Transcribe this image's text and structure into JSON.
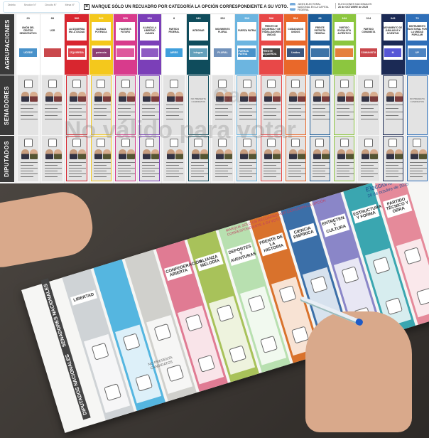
{
  "ballot": {
    "fields": [
      "Distrito",
      "Sección N°",
      "Circuito N°",
      "Mesa N°"
    ],
    "instruction": "MARQUE SÓLO UN RECUADRO POR CATEGORÍA LA OPCIÓN CORRESPONDIENTE A SU VOTO.",
    "junta": "JUNTA ELECTORAL NACIONAL EN LA CAPITAL FEDERAL",
    "election_title": "ELECCIONES NACIONALES",
    "election_date": "26 de OCTUBRE de 2025",
    "sections": {
      "agrupaciones": "AGRUPACIONES",
      "senadores": "SENADORES",
      "diputados": "DIPUTADOS"
    },
    "no_candidates": "NO PRESENTA CANDIDATOS",
    "watermark": "No válido para votar",
    "watermark2": "Ca",
    "parties": [
      {
        "number": "20",
        "name": "UNIÓN DEL CENTRO DEMOCRÁTICO",
        "logo": "UCEDE",
        "color": "#ffffff",
        "logo_color": "#2a7fc1",
        "senate": true
      },
      {
        "number": "89",
        "name": "UCR",
        "logo": "",
        "color": "#ffffff",
        "logo_color": "#c0282d",
        "senate": true
      },
      {
        "number": "500",
        "name": "LA IZQUIERDA EN LA CIUDAD",
        "logo": "IZQUIERDA",
        "color": "#d8262f",
        "logo_color": "#d8262f",
        "senate": true
      },
      {
        "number": "502",
        "name": "ALIANZA POTENCIA",
        "logo": "potencia",
        "color": "#f4c81c",
        "logo_color": "#7a1f5c",
        "senate": true
      },
      {
        "number": "505",
        "name": "HACEMOS FUTURO",
        "logo": "",
        "color": "#d83b8c",
        "logo_color": "#d83b8c",
        "senate": true
      },
      {
        "number": "501",
        "name": "ALIANZA LA LIBERTAD AVANZA",
        "logo": "",
        "color": "#7b3fb8",
        "logo_color": "#7b3fb8",
        "senate": true
      },
      {
        "number": "8",
        "name": "PARTIDO FEDERAL",
        "logo": "AIRES",
        "color": "#ffffff",
        "logo_color": "#1f8fd6",
        "senate": true
      },
      {
        "number": "340",
        "name": "INTEGRAR",
        "logo": "integrar",
        "color": "#0f4c5c",
        "logo_color": "#4a90b0",
        "senate": false
      },
      {
        "number": "352",
        "name": "MOVIMIENTO PLURAL",
        "logo": "PLURAL",
        "color": "#ffffff",
        "logo_color": "#5a7fb0",
        "senate": true
      },
      {
        "number": "503",
        "name": "FUERZA PATRIA",
        "logo": "FUERZA PATRIA",
        "color": "#6cb5e0",
        "logo_color": "#2a7fc1",
        "senate": true
      },
      {
        "number": "506",
        "name": "FRENTE DE IZQUIERDA Y DE TRABAJADORES UNIDAD",
        "logo": "FRENTE IZQUIERDA",
        "color": "#e84848",
        "logo_color": "#222222",
        "senate": true
      },
      {
        "number": "504",
        "name": "CIUDADANOS UNIDOS",
        "logo": "Unidos",
        "color": "#e9682a",
        "logo_color": "#1b3a6b",
        "senate": true
      },
      {
        "number": "95",
        "name": "FRENTE PATRIOTA FEDERAL",
        "logo": "",
        "color": "#1c5c98",
        "logo_color": "#1c5c98",
        "senate": true
      },
      {
        "number": "184",
        "name": "PARTIDO SOCIALISTA AUTÉNTICO",
        "logo": "",
        "color": "#8cc63f",
        "logo_color": "#e06a1a",
        "senate": true
      },
      {
        "number": "314",
        "name": "PARTIDO COMUNISTA",
        "logo": "COMUNISTA",
        "color": "#ffffff",
        "logo_color": "#c0282d",
        "senate": true
      },
      {
        "number": "343",
        "name": "MOVIMIENTO DE JUBILADOS Y JUVENTUD",
        "logo": "M",
        "color": "#1b2a55",
        "logo_color": "#3a3ad0",
        "senate": true
      },
      {
        "number": "73",
        "name": "INSTRUMENTO ELECTORAL POR LA UNIDAD POPULAR",
        "logo": "UP",
        "color": "#2f6fb8",
        "logo_color": "#2f6fb8",
        "senate": false
      }
    ]
  },
  "photo": {
    "title": "Elecciones NACIONALES 2025",
    "date": "26 de octubre de 2025",
    "instruction": "MARQUE SÓLO UN RECUADRO POR CATEGORÍA LA OPCIÓN CORRESPONDIENTE A SU VOTO",
    "diputados": "DIPUTADOS NACIONALES",
    "senadores": "SENADORES NACIONALES",
    "no_candidates": "NO PRESENTA CANDIDATOS",
    "parties": [
      {
        "name": "LIBERTAD",
        "color": "#cfd3d6"
      },
      {
        "name": "",
        "color": "#55b6e0"
      },
      {
        "name": "",
        "color": "#d0d0cc"
      },
      {
        "name": "CONFEDERACIÓN ABIERTA",
        "color": "#e07b93"
      },
      {
        "name": "ALIANZA MELODÍA",
        "color": "#a8c25a"
      },
      {
        "name": "DEPORTES Y AVENTURAS",
        "color": "#b8e0b0"
      },
      {
        "name": "FRENTE DE LA HISTORIA",
        "color": "#d9722c"
      },
      {
        "name": "CIENCIA EMPÍRICA",
        "color": "#3b6fa8"
      },
      {
        "name": "ENTRETEN. Y CULTURA",
        "color": "#8a86c8"
      },
      {
        "name": "ESTRUCTURA Y FORMA",
        "color": "#3aa6b0"
      },
      {
        "name": "PARTIDO TÉCNICO Y OBRA",
        "color": "#e58a9a"
      }
    ]
  }
}
